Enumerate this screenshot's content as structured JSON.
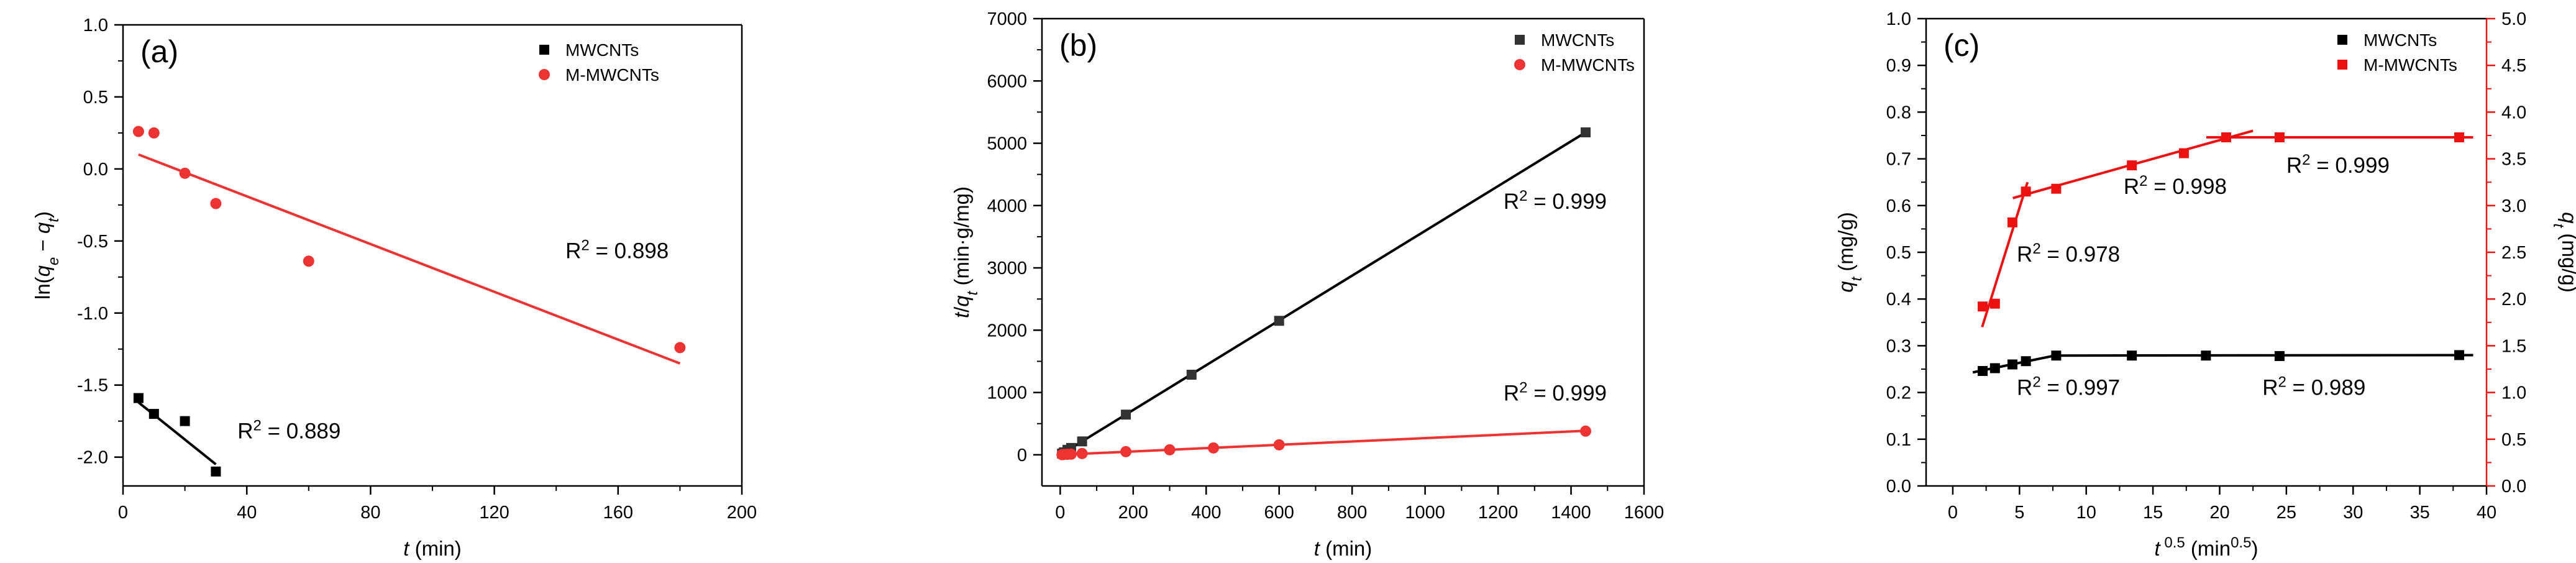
{
  "chart_data": [
    {
      "type": "scatter",
      "panel_label": "(a)",
      "xlabel": "t (min)",
      "ylabel": "ln(qe − qt)",
      "xlim": [
        0,
        200
      ],
      "ylim": [
        -2.2,
        1.0
      ],
      "xticks": [
        0,
        40,
        80,
        120,
        160,
        200
      ],
      "yticks": [
        -2.0,
        -1.5,
        -1.0,
        -0.5,
        0.0,
        0.5,
        1.0
      ],
      "ytick_labels": [
        "-2.0",
        "-1.5",
        "-1.0",
        "-0.5",
        "0.0",
        "0.5",
        "1.0"
      ],
      "legend": [
        {
          "name": "MWCNTs",
          "color": "#000000",
          "marker": "square"
        },
        {
          "name": "M-MWCNTs",
          "color": "#ee3333",
          "marker": "circle"
        }
      ],
      "series": [
        {
          "name": "MWCNTs",
          "color": "#000000",
          "marker": "square",
          "points": [
            [
              5,
              -1.59
            ],
            [
              10,
              -1.7
            ],
            [
              20,
              -1.75
            ],
            [
              30,
              -2.1
            ]
          ]
        },
        {
          "name": "M-MWCNTs",
          "color": "#ee3333",
          "marker": "circle",
          "points": [
            [
              5,
              0.26
            ],
            [
              10,
              0.25
            ],
            [
              20,
              -0.03
            ],
            [
              30,
              -0.24
            ],
            [
              60,
              -0.64
            ],
            [
              180,
              -1.24
            ]
          ]
        }
      ],
      "fits": [
        {
          "color": "#000000",
          "x": [
            5,
            30
          ],
          "y": [
            -1.62,
            -2.05
          ]
        },
        {
          "color": "#ee3333",
          "x": [
            5,
            180
          ],
          "y": [
            0.1,
            -1.35
          ]
        }
      ],
      "annotations": [
        {
          "base": "R",
          "exp": "2",
          "rest": " = 0.889",
          "x": 37,
          "y": -1.87,
          "color": "#000000"
        },
        {
          "base": "R",
          "exp": "2",
          "rest": " = 0.898",
          "x": 143,
          "y": -0.62,
          "color": "#000000"
        }
      ]
    },
    {
      "type": "scatter",
      "panel_label": "(b)",
      "xlabel": "t (min)",
      "ylabel": "t/qt (min·g/mg)",
      "xlim": [
        -50,
        1600
      ],
      "ylim": [
        -500,
        7000
      ],
      "xticks": [
        0,
        200,
        400,
        600,
        800,
        1000,
        1200,
        1400,
        1600
      ],
      "yticks": [
        0,
        1000,
        2000,
        3000,
        4000,
        5000,
        6000,
        7000
      ],
      "legend": [
        {
          "name": "MWCNTs",
          "color": "#333333",
          "marker": "square"
        },
        {
          "name": "M-MWCNTs",
          "color": "#ee3333",
          "marker": "circle"
        }
      ],
      "series": [
        {
          "name": "MWCNTs",
          "color": "#333333",
          "marker": "square",
          "points": [
            [
              5,
              20
            ],
            [
              10,
              40
            ],
            [
              20,
              80
            ],
            [
              30,
              110
            ],
            [
              60,
              215
            ],
            [
              180,
              645
            ],
            [
              360,
              1285
            ],
            [
              600,
              2150
            ],
            [
              1440,
              5175
            ]
          ]
        },
        {
          "name": "M-MWCNTs",
          "color": "#ee3333",
          "marker": "circle",
          "points": [
            [
              5,
              2
            ],
            [
              10,
              5
            ],
            [
              20,
              8
            ],
            [
              30,
              10
            ],
            [
              60,
              20
            ],
            [
              180,
              50
            ],
            [
              300,
              80
            ],
            [
              420,
              110
            ],
            [
              600,
              160
            ],
            [
              1440,
              380
            ]
          ]
        }
      ],
      "fits": [
        {
          "color": "#000000",
          "x": [
            0,
            1440
          ],
          "y": [
            0,
            5175
          ]
        },
        {
          "color": "#ee3333",
          "x": [
            0,
            1440
          ],
          "y": [
            0,
            385
          ]
        }
      ],
      "annotations": [
        {
          "base": "R",
          "exp": "2",
          "rest": " = 0.999",
          "x": 1215,
          "y": 3950,
          "color": "#000000"
        },
        {
          "base": "R",
          "exp": "2",
          "rest": " = 0.999",
          "x": 1215,
          "y": 870,
          "color": "#000000"
        }
      ]
    },
    {
      "type": "scatter",
      "panel_label": "(c)",
      "xlabel": "t 0.5 (min0.5)",
      "ylabel_left": "qt (mg/g)",
      "ylabel_right": "qt (mg/g)",
      "xlim": [
        -2,
        40
      ],
      "ylim_left": [
        0,
        1.0
      ],
      "ylim_right": [
        0,
        5.0
      ],
      "xticks": [
        0,
        5,
        10,
        15,
        20,
        25,
        30,
        35,
        40
      ],
      "yticks_left": [
        0.0,
        0.1,
        0.2,
        0.3,
        0.4,
        0.5,
        0.6,
        0.7,
        0.8,
        0.9,
        1.0
      ],
      "ytick_labels_left": [
        "0.0",
        "0.1",
        "0.2",
        "0.3",
        "0.4",
        "0.5",
        "0.6",
        "0.7",
        "0.8",
        "0.9",
        "1.0"
      ],
      "yticks_right": [
        0,
        0.5,
        1.0,
        1.5,
        2.0,
        2.5,
        3.0,
        3.5,
        4.0,
        4.5,
        5.0
      ],
      "ytick_labels_right": [
        "0.0",
        "0.5",
        "1.0",
        "1.5",
        "2.0",
        "2.5",
        "3.0",
        "3.5",
        "4.0",
        "4.5",
        "5.0"
      ],
      "legend": [
        {
          "name": "MWCNTs",
          "color": "#000000",
          "marker": "square"
        },
        {
          "name": "M-MWCNTs",
          "color": "#ee1111",
          "marker": "square"
        }
      ],
      "series": [
        {
          "name": "MWCNTs",
          "axis": "left",
          "color": "#000000",
          "marker": "square",
          "points": [
            [
              2.24,
              0.246
            ],
            [
              3.16,
              0.252
            ],
            [
              4.47,
              0.26
            ],
            [
              5.48,
              0.267
            ],
            [
              7.75,
              0.279
            ],
            [
              13.42,
              0.279
            ],
            [
              18.97,
              0.279
            ],
            [
              24.49,
              0.278
            ],
            [
              37.95,
              0.28
            ]
          ]
        },
        {
          "name": "M-MWCNTs",
          "axis": "right",
          "color": "#ee1111",
          "marker": "square",
          "points": [
            [
              2.24,
              1.92
            ],
            [
              3.16,
              1.95
            ],
            [
              4.47,
              2.82
            ],
            [
              5.48,
              3.15
            ],
            [
              7.75,
              3.18
            ],
            [
              13.42,
              3.43
            ],
            [
              17.32,
              3.56
            ],
            [
              20.49,
              3.73
            ],
            [
              24.49,
              3.73
            ],
            [
              37.95,
              3.73
            ]
          ]
        }
      ],
      "fits": [
        {
          "axis": "left",
          "color": "#000000",
          "x": [
            1.5,
            8.0
          ],
          "y": [
            0.243,
            0.281
          ]
        },
        {
          "axis": "left",
          "color": "#000000",
          "x": [
            7.5,
            39.0
          ],
          "y": [
            0.279,
            0.28
          ]
        },
        {
          "axis": "right",
          "color": "#ee1111",
          "x": [
            2.2,
            5.6
          ],
          "y": [
            1.7,
            3.25
          ]
        },
        {
          "axis": "right",
          "color": "#ee1111",
          "x": [
            4.5,
            22.5
          ],
          "y": [
            3.08,
            3.8
          ]
        },
        {
          "axis": "right",
          "color": "#ee1111",
          "x": [
            19.0,
            39.0
          ],
          "y": [
            3.73,
            3.73
          ]
        }
      ],
      "annotations": [
        {
          "base": "R",
          "exp": "2",
          "rest": " = 0.997",
          "x": 4.8,
          "y": 0.195,
          "color": "#000000"
        },
        {
          "base": "R",
          "exp": "2",
          "rest": " = 0.989",
          "x": 23.2,
          "y": 0.195,
          "color": "#000000"
        },
        {
          "base": "R",
          "exp": "2",
          "rest": " = 0.978",
          "x": 4.8,
          "y": 0.48,
          "color": "#ee1111"
        },
        {
          "base": "R",
          "exp": "2",
          "rest": " = 0.998",
          "x": 12.8,
          "y": 0.625,
          "color": "#ee1111"
        },
        {
          "base": "R",
          "exp": "2",
          "rest": " = 0.999",
          "x": 25.0,
          "y": 0.67,
          "color": "#ee1111"
        }
      ]
    }
  ]
}
